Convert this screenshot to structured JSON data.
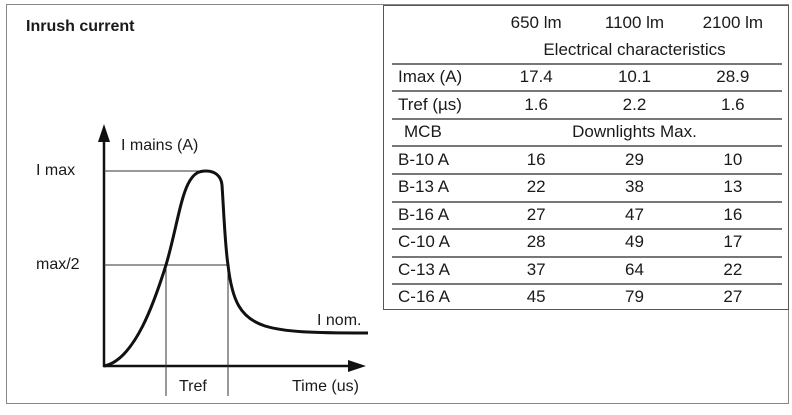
{
  "title": "Inrush current",
  "diagram": {
    "y_axis_label": "I mains (A)",
    "x_axis_label": "Time (us)",
    "imax_label": "I max",
    "half_label": "max/2",
    "inom_label": "I nom.",
    "tref_label": "Tref"
  },
  "table": {
    "columns": [
      "650 lm",
      "1100 lm",
      "2100 lm"
    ],
    "section1": "Electrical characteristics",
    "electrical": [
      {
        "label": "Imax (A)",
        "values": [
          "17.4",
          "10.1",
          "28.9"
        ]
      },
      {
        "label": "Tref (µs)",
        "values": [
          "1.6",
          "2.2",
          "1.6"
        ]
      }
    ],
    "mcb_header": "MCB",
    "section2": "Downlights Max.",
    "mcb": [
      {
        "label": "B-10 A",
        "values": [
          "16",
          "29",
          "10"
        ]
      },
      {
        "label": "B-13 A",
        "values": [
          "22",
          "38",
          "13"
        ]
      },
      {
        "label": "B-16 A",
        "values": [
          "27",
          "47",
          "16"
        ]
      },
      {
        "label": "C-10 A",
        "values": [
          "28",
          "49",
          "17"
        ]
      },
      {
        "label": "C-13 A",
        "values": [
          "37",
          "64",
          "22"
        ]
      },
      {
        "label": "C-16 A",
        "values": [
          "45",
          "79",
          "27"
        ]
      }
    ]
  }
}
